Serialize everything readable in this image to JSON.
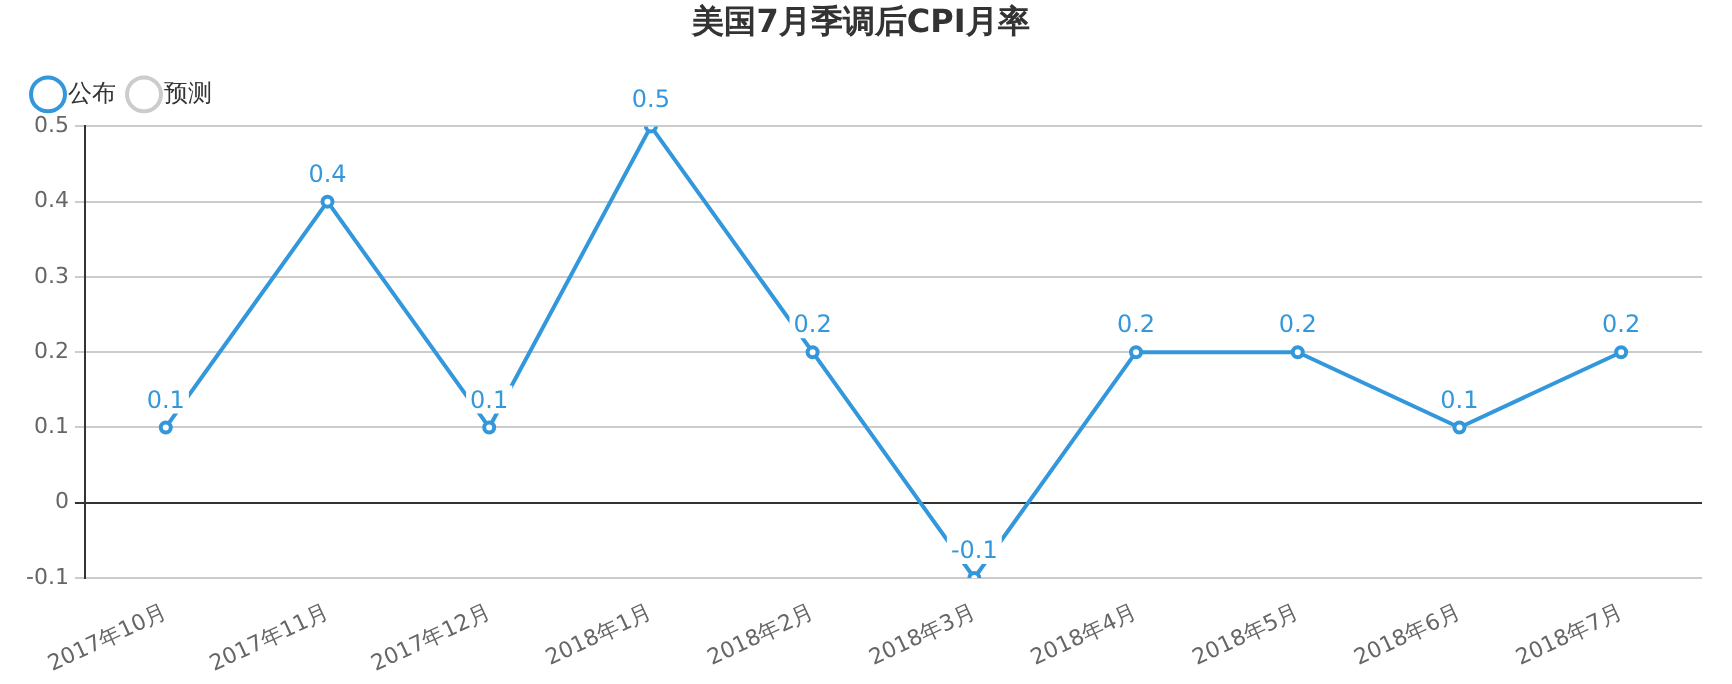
{
  "chart_data": {
    "type": "line",
    "title": "美国7月季调后CPI月率",
    "categories": [
      "2017年10月",
      "2017年11月",
      "2017年12月",
      "2018年1月",
      "2018年2月",
      "2018年3月",
      "2018年4月",
      "2018年5月",
      "2018年6月",
      "2018年7月"
    ],
    "series": [
      {
        "name": "公布",
        "color": "#3398db",
        "values": [
          0.1,
          0.4,
          0.1,
          0.5,
          0.2,
          -0.1,
          0.2,
          0.2,
          0.1,
          0.2
        ]
      },
      {
        "name": "预测",
        "color": "#cccccc",
        "values": [
          null,
          null,
          null,
          null,
          null,
          null,
          null,
          null,
          null,
          null
        ]
      }
    ],
    "ylim": [
      -0.1,
      0.5
    ],
    "yticks": [
      -0.1,
      0,
      0.1,
      0.2,
      0.3,
      0.4,
      0.5
    ],
    "grid": "y",
    "legend": "top left",
    "marker": "circle",
    "line_style": "solid",
    "data_labels": true
  }
}
